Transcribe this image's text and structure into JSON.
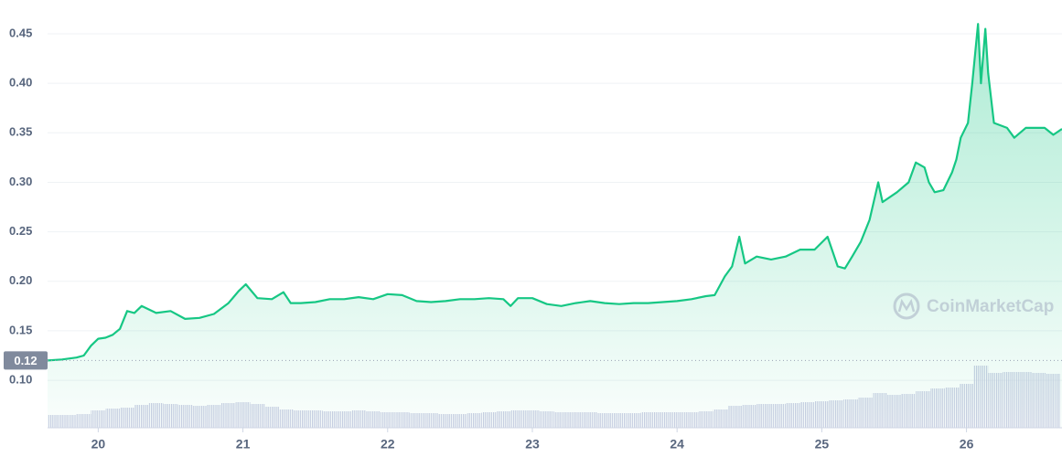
{
  "chart_data": {
    "type": "line",
    "color": "#16c784",
    "x": [
      19.65,
      19.75,
      19.85,
      19.9,
      19.95,
      20.0,
      20.05,
      20.1,
      20.15,
      20.2,
      20.25,
      20.3,
      20.4,
      20.5,
      20.6,
      20.7,
      20.8,
      20.9,
      20.97,
      21.02,
      21.1,
      21.2,
      21.28,
      21.33,
      21.4,
      21.5,
      21.6,
      21.7,
      21.8,
      21.9,
      22.0,
      22.1,
      22.2,
      22.3,
      22.4,
      22.5,
      22.6,
      22.7,
      22.8,
      22.85,
      22.9,
      23.0,
      23.1,
      23.2,
      23.3,
      23.4,
      23.5,
      23.6,
      23.7,
      23.8,
      23.9,
      24.0,
      24.1,
      24.2,
      24.26,
      24.33,
      24.38,
      24.43,
      24.47,
      24.55,
      24.65,
      24.75,
      24.85,
      24.95,
      25.04,
      25.11,
      25.16,
      25.21,
      25.27,
      25.33,
      25.39,
      25.42,
      25.52,
      25.6,
      25.65,
      25.71,
      25.74,
      25.78,
      25.84,
      25.9,
      25.93,
      25.96,
      26.01,
      26.04,
      26.08,
      26.1,
      26.13,
      26.15,
      26.19,
      26.28,
      26.33,
      26.41,
      26.54,
      26.6,
      26.66
    ],
    "values": [
      0.12,
      0.121,
      0.123,
      0.125,
      0.135,
      0.142,
      0.143,
      0.146,
      0.152,
      0.17,
      0.168,
      0.175,
      0.168,
      0.17,
      0.162,
      0.163,
      0.167,
      0.178,
      0.19,
      0.197,
      0.183,
      0.182,
      0.189,
      0.178,
      0.178,
      0.179,
      0.182,
      0.182,
      0.184,
      0.182,
      0.187,
      0.186,
      0.18,
      0.179,
      0.18,
      0.182,
      0.182,
      0.183,
      0.182,
      0.175,
      0.183,
      0.183,
      0.177,
      0.175,
      0.178,
      0.18,
      0.178,
      0.177,
      0.178,
      0.178,
      0.179,
      0.18,
      0.182,
      0.185,
      0.186,
      0.205,
      0.215,
      0.245,
      0.218,
      0.225,
      0.222,
      0.225,
      0.232,
      0.232,
      0.245,
      0.215,
      0.213,
      0.225,
      0.24,
      0.262,
      0.3,
      0.28,
      0.29,
      0.3,
      0.32,
      0.315,
      0.3,
      0.29,
      0.292,
      0.31,
      0.323,
      0.345,
      0.36,
      0.4,
      0.46,
      0.4,
      0.455,
      0.41,
      0.36,
      0.355,
      0.345,
      0.355,
      0.355,
      0.348,
      0.354
    ],
    "xlim": [
      19.65,
      26.66
    ],
    "xticks": [
      20,
      21,
      22,
      23,
      24,
      25,
      26
    ],
    "ylim": [
      0.06,
      0.48
    ],
    "yticks": [
      {
        "value": 0.1,
        "label": "0.10"
      },
      0.15,
      {
        "value": 0.2,
        "label": "0.20"
      },
      0.25,
      {
        "value": 0.3,
        "label": "0.30"
      },
      0.35,
      {
        "value": 0.4,
        "label": "0.40"
      },
      0.45
    ],
    "grid": true,
    "reference": 0.12,
    "volume": {
      "color": "#cfd3e6",
      "vlim": [
        0,
        80
      ],
      "x": [
        19.7,
        19.8,
        19.9,
        20.0,
        20.1,
        20.2,
        20.3,
        20.4,
        20.5,
        20.6,
        20.7,
        20.8,
        20.9,
        21.0,
        21.1,
        21.2,
        21.3,
        21.4,
        21.5,
        21.6,
        21.7,
        21.8,
        21.9,
        22.0,
        22.1,
        22.2,
        22.3,
        22.4,
        22.5,
        22.6,
        22.7,
        22.8,
        22.9,
        23.0,
        23.1,
        23.2,
        23.3,
        23.4,
        23.5,
        23.6,
        23.7,
        23.8,
        23.9,
        24.0,
        24.1,
        24.2,
        24.3,
        24.4,
        24.5,
        24.6,
        24.7,
        24.8,
        24.9,
        25.0,
        25.1,
        25.2,
        25.3,
        25.4,
        25.5,
        25.6,
        25.7,
        25.8,
        25.9,
        26.0,
        26.1,
        26.2,
        26.3,
        26.4,
        26.5,
        26.6
      ],
      "values": [
        14,
        14,
        15,
        19,
        21,
        22,
        25,
        27,
        26,
        25,
        24,
        25,
        27,
        28,
        26,
        23,
        20,
        19,
        19,
        18,
        18,
        19,
        18,
        17,
        17,
        16,
        16,
        15,
        15,
        16,
        17,
        18,
        19,
        19,
        18,
        17,
        17,
        17,
        16,
        16,
        16,
        17,
        17,
        17,
        17,
        18,
        20,
        24,
        25,
        26,
        26,
        27,
        28,
        29,
        30,
        31,
        33,
        38,
        36,
        37,
        40,
        43,
        44,
        48,
        68,
        60,
        61,
        61,
        60,
        59
      ]
    },
    "watermark": "CoinMarketCap"
  }
}
